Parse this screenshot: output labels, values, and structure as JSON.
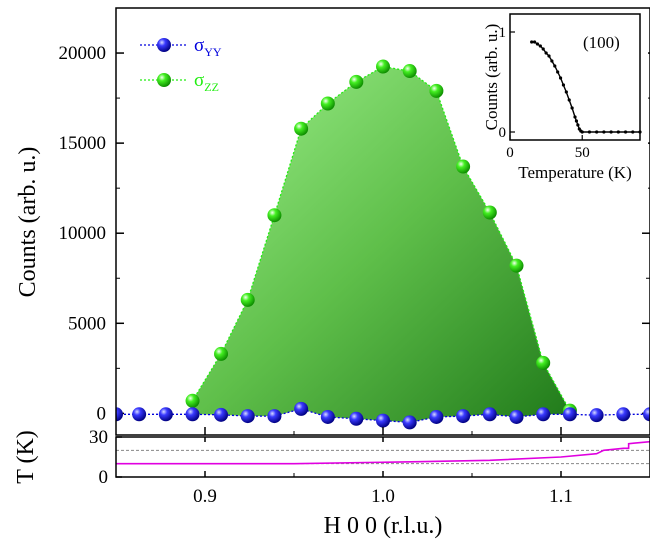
{
  "chart_data": [
    {
      "type": "scatter",
      "title": "",
      "xlabel": "H 0 0 (r.l.u.)",
      "ylabel": "Counts (arb. u.)",
      "xlim": [
        0.85,
        1.15
      ],
      "ylim": [
        -1200,
        22500
      ],
      "xticks": [
        "0.9",
        "1.0",
        "1.1"
      ],
      "yticks": [
        "0",
        "5000",
        "10000",
        "15000",
        "20000"
      ],
      "legend_position": "top-left",
      "series": [
        {
          "name": "σYY",
          "name_main": "σ",
          "name_sub": "YY",
          "color": "#0000dd",
          "line_style": "dotted",
          "x": [
            0.85,
            0.863,
            0.878,
            0.893,
            0.909,
            0.924,
            0.939,
            0.954,
            0.969,
            0.985,
            1.0,
            1.015,
            1.03,
            1.045,
            1.06,
            1.075,
            1.09,
            1.105,
            1.12,
            1.135,
            1.15
          ],
          "y": [
            -50,
            -50,
            -50,
            -50,
            -80,
            -150,
            -150,
            250,
            -200,
            -300,
            -400,
            -500,
            -200,
            -150,
            -50,
            -200,
            -50,
            -50,
            -100,
            -50,
            -50
          ]
        },
        {
          "name": "σZZ",
          "name_main": "σ",
          "name_sub": "ZZ",
          "color": "#22ee11",
          "line_style": "dotted",
          "x": [
            0.893,
            0.909,
            0.924,
            0.939,
            0.954,
            0.969,
            0.985,
            1.0,
            1.015,
            1.03,
            1.045,
            1.06,
            1.075,
            1.09,
            1.105
          ],
          "y": [
            700,
            3300,
            6300,
            11000,
            15800,
            17200,
            18400,
            19250,
            19000,
            17900,
            13700,
            11150,
            8200,
            2800,
            150
          ]
        }
      ]
    },
    {
      "type": "line",
      "title": "",
      "xlabel": "H 0 0 (r.l.u.)",
      "ylabel": "T (K)",
      "xlim": [
        0.85,
        1.15
      ],
      "ylim": [
        0,
        30
      ],
      "xticks": [
        "0.9",
        "1.0",
        "1.1"
      ],
      "yticks": [
        "0",
        "30"
      ],
      "reference_lines": [
        20,
        10
      ],
      "series": [
        {
          "name": "",
          "color": "#e000e0",
          "x": [
            0.85,
            0.95,
            1.02,
            1.06,
            1.1,
            1.12,
            1.124,
            1.135,
            1.138,
            1.15
          ],
          "y": [
            10,
            10,
            11.5,
            12.5,
            15,
            17.5,
            20,
            21.5,
            25,
            26.5
          ]
        }
      ]
    },
    {
      "type": "line",
      "title": "",
      "annotation": "(100)",
      "xlabel": "Temperature (K)",
      "ylabel": "Counts (arb. u.)",
      "xlim": [
        0,
        90
      ],
      "xticks": [
        "0",
        "50"
      ],
      "yticks": [
        "0",
        "1"
      ],
      "series": [
        {
          "name": "",
          "color": "#000000",
          "x": [
            15,
            17,
            19,
            21,
            23,
            25,
            27,
            29,
            31,
            33,
            35,
            37,
            39,
            41,
            43,
            45,
            46,
            47,
            48,
            49,
            50,
            55,
            60,
            65,
            70,
            75,
            80,
            85,
            90
          ],
          "y": [
            0.9,
            0.9,
            0.88,
            0.86,
            0.83,
            0.79,
            0.76,
            0.71,
            0.66,
            0.6,
            0.54,
            0.47,
            0.4,
            0.32,
            0.24,
            0.15,
            0.11,
            0.07,
            0.03,
            0.01,
            0,
            0,
            0,
            0,
            0,
            0,
            0,
            0,
            0
          ]
        }
      ]
    }
  ]
}
